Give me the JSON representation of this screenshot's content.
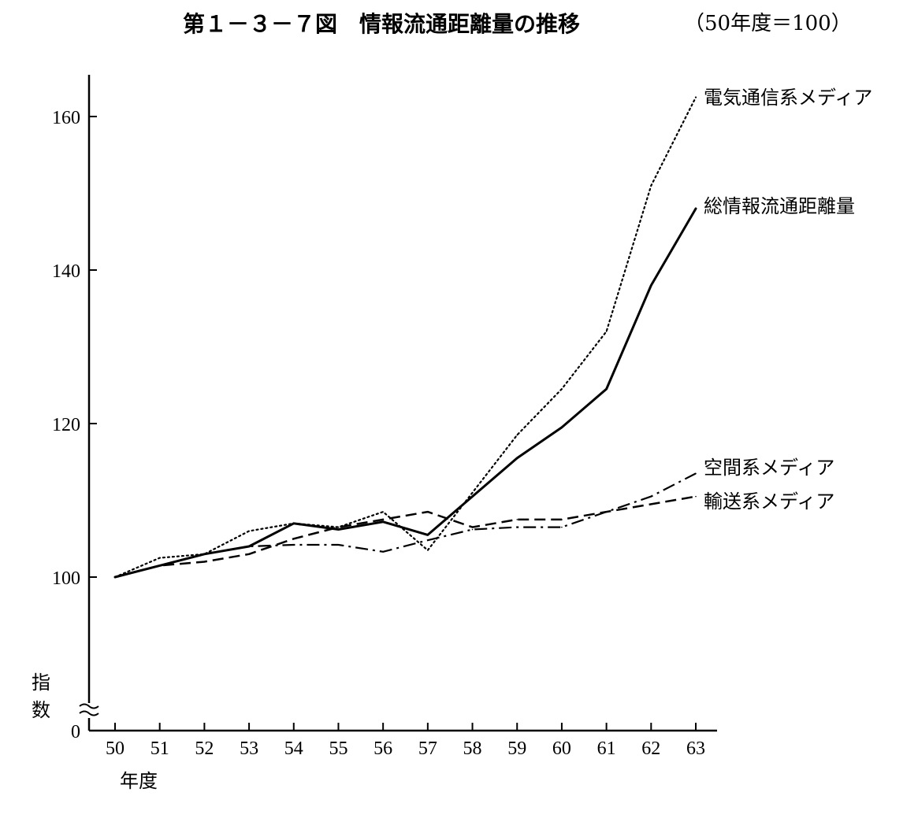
{
  "chart_data": {
    "type": "line",
    "title": "第１－３－７図　情報流通距離量の推移",
    "subtitle": "（50年度＝100）",
    "xlabel": "年度",
    "ylabel": "指数",
    "categories": [
      "50",
      "51",
      "52",
      "53",
      "54",
      "55",
      "56",
      "57",
      "58",
      "59",
      "60",
      "61",
      "62",
      "63"
    ],
    "yticks": [
      0,
      100,
      120,
      140,
      160
    ],
    "ylim": [
      100,
      165
    ],
    "axis_break": true,
    "series": [
      {
        "name": "電気通信系メディア",
        "style": "dotted",
        "values": [
          100,
          102.5,
          103.0,
          106.0,
          107.0,
          106.5,
          108.5,
          103.5,
          111.0,
          118.5,
          124.5,
          132.0,
          151.0,
          162.5
        ]
      },
      {
        "name": "総情報流通距離量",
        "style": "solid",
        "values": [
          100,
          101.5,
          103.0,
          104.0,
          107.0,
          106.2,
          107.2,
          105.5,
          110.5,
          115.5,
          119.5,
          124.5,
          138.0,
          148.0
        ]
      },
      {
        "name": "空間系メディア",
        "style": "dashdot",
        "values": [
          100,
          101.5,
          103.0,
          104.0,
          104.2,
          104.2,
          103.3,
          104.8,
          106.2,
          106.5,
          106.5,
          108.5,
          110.5,
          113.5
        ]
      },
      {
        "name": "輸送系メディア",
        "style": "dashed",
        "values": [
          100,
          101.5,
          102.0,
          103.0,
          105.0,
          106.5,
          107.5,
          108.5,
          106.5,
          107.5,
          107.5,
          108.5,
          109.5,
          110.5
        ]
      }
    ],
    "grid": false,
    "legend": "line-end labels, right"
  }
}
